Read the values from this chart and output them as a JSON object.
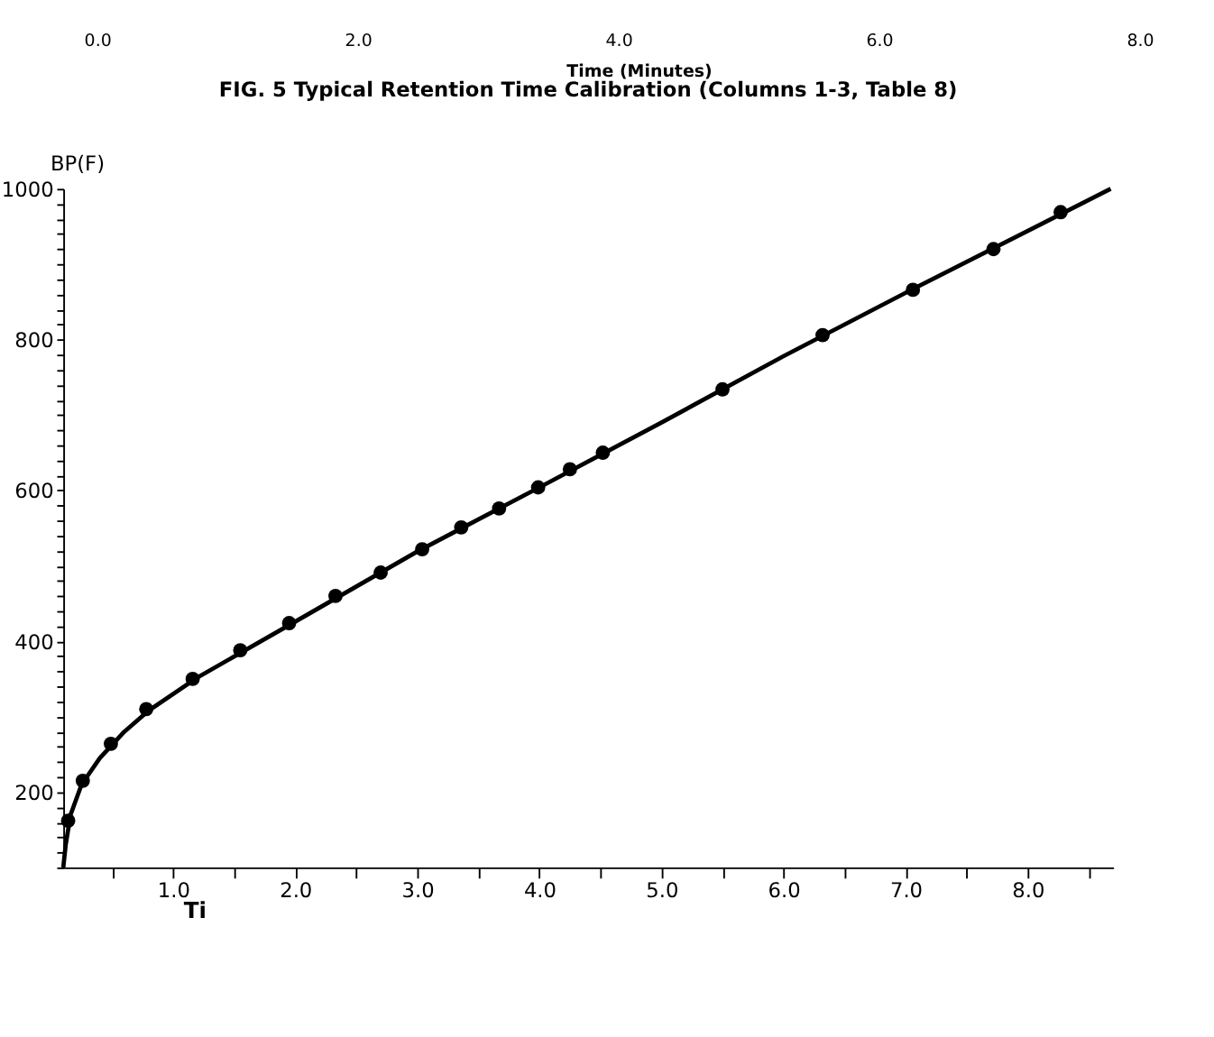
{
  "chart_data": {
    "type": "scatter",
    "title": "FIG. 5 Typical Retention Time Calibration (Columns 1-3, Table 8)",
    "xlabel": "Ti",
    "ylabel": "BP(F)",
    "x2label": "Time (Minutes)",
    "x2lim": [
      -0.26,
      8.57
    ],
    "x2ticks": [
      {
        "value": 0,
        "label": "0.0"
      },
      {
        "value": 2,
        "label": "2.0"
      },
      {
        "value": 4,
        "label": "4.0"
      },
      {
        "value": 6,
        "label": "6.0"
      },
      {
        "value": 8,
        "label": "8.0"
      }
    ],
    "xlim": [
      0.1,
      8.7
    ],
    "ylim": [
      100,
      1000
    ],
    "xticks": [
      {
        "value": 0.5,
        "label": null
      },
      {
        "value": 1,
        "label": "1.0"
      },
      {
        "value": 1.5,
        "label": null
      },
      {
        "value": 2,
        "label": "2.0"
      },
      {
        "value": 2.5,
        "label": null
      },
      {
        "value": 3,
        "label": "3.0"
      },
      {
        "value": 3.5,
        "label": null
      },
      {
        "value": 4,
        "label": "4.0"
      },
      {
        "value": 4.5,
        "label": null
      },
      {
        "value": 5,
        "label": "5.0"
      },
      {
        "value": 5.5,
        "label": null
      },
      {
        "value": 6,
        "label": "6.0"
      },
      {
        "value": 6.5,
        "label": null
      },
      {
        "value": 7,
        "label": "7.0"
      },
      {
        "value": 7.5,
        "label": null
      },
      {
        "value": 8,
        "label": "8.0"
      },
      {
        "value": 8.5,
        "label": null
      }
    ],
    "yticks": [
      {
        "value": 100,
        "label": null
      },
      {
        "value": 120,
        "label": null
      },
      {
        "value": 140,
        "label": null
      },
      {
        "value": 160,
        "label": null
      },
      {
        "value": 180,
        "label": null
      },
      200,
      {
        "value": 220,
        "label": null
      },
      {
        "value": 240,
        "label": null
      },
      {
        "value": 260,
        "label": null
      },
      {
        "value": 280,
        "label": null
      },
      {
        "value": 300,
        "label": null
      },
      {
        "value": 320,
        "label": null
      },
      {
        "value": 340,
        "label": null
      },
      {
        "value": 360,
        "label": null
      },
      {
        "value": 380,
        "label": null
      },
      400,
      {
        "value": 420,
        "label": null
      },
      {
        "value": 440,
        "label": null
      },
      {
        "value": 460,
        "label": null
      },
      {
        "value": 480,
        "label": null
      },
      {
        "value": 500,
        "label": null
      },
      {
        "value": 520,
        "label": null
      },
      {
        "value": 540,
        "label": null
      },
      {
        "value": 560,
        "label": null
      },
      {
        "value": 580,
        "label": null
      },
      600,
      {
        "value": 620,
        "label": null
      },
      {
        "value": 640,
        "label": null
      },
      {
        "value": 660,
        "label": null
      },
      {
        "value": 680,
        "label": null
      },
      {
        "value": 700,
        "label": null
      },
      {
        "value": 720,
        "label": null
      },
      {
        "value": 740,
        "label": null
      },
      {
        "value": 760,
        "label": null
      },
      {
        "value": 780,
        "label": null
      },
      800,
      {
        "value": 820,
        "label": null
      },
      {
        "value": 840,
        "label": null
      },
      {
        "value": 860,
        "label": null
      },
      {
        "value": 880,
        "label": null
      },
      {
        "value": 900,
        "label": null
      },
      {
        "value": 920,
        "label": null
      },
      {
        "value": 940,
        "label": null
      },
      {
        "value": 960,
        "label": null
      },
      {
        "value": 980,
        "label": null
      },
      1000
    ],
    "grid": false,
    "series": [
      {
        "marker": "circle",
        "color": "#000000",
        "x": [
          0.14,
          0.26,
          0.49,
          0.78,
          1.16,
          1.55,
          1.95,
          2.33,
          2.7,
          3.04,
          3.36,
          3.67,
          3.99,
          4.25,
          4.52,
          5.5,
          6.32,
          7.06,
          7.72,
          8.27
        ],
        "values": [
          162,
          215,
          264,
          310,
          350,
          388,
          424,
          460,
          491,
          522,
          551,
          576,
          604,
          628,
          650,
          734,
          806,
          866,
          920,
          969
        ]
      },
      {
        "type": "line",
        "marker": "none",
        "color": "#000000",
        "line_style": "solid",
        "x": [
          0.1,
          0.12,
          0.16,
          0.25,
          0.4,
          0.6,
          0.8,
          1.2,
          2,
          3,
          4,
          5,
          6,
          7,
          8,
          8.68
        ],
        "values": [
          100,
          130,
          170,
          210,
          245,
          280,
          308,
          352,
          426,
          519,
          604,
          690,
          778,
          862,
          944,
          1000
        ]
      }
    ]
  }
}
